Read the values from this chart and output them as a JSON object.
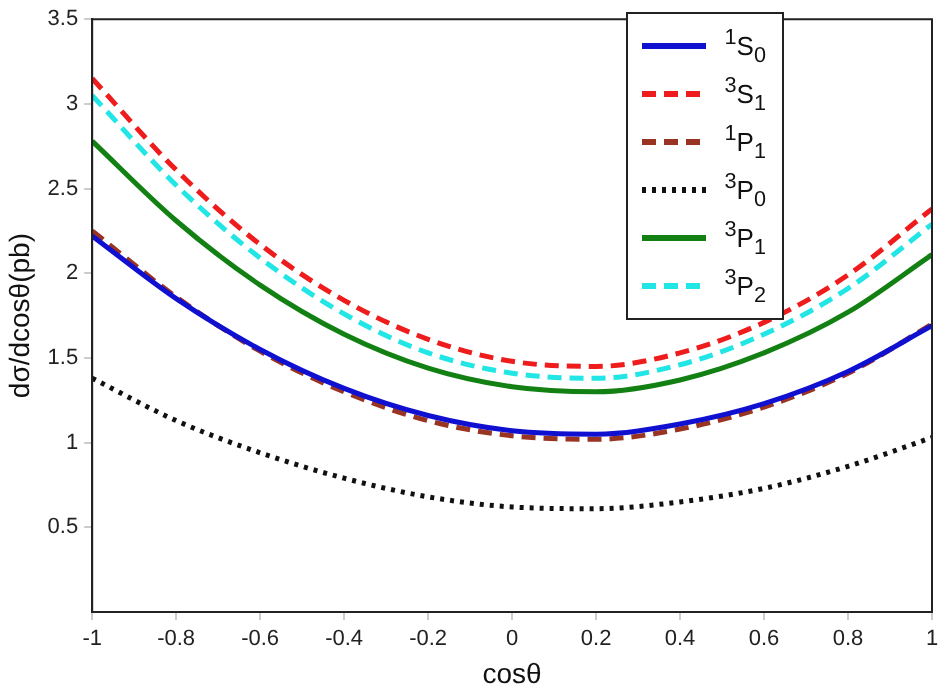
{
  "chart_data": {
    "type": "line",
    "xlabel": "cosθ",
    "ylabel": "dσ/dcosθ(pb)",
    "x": [
      -1,
      -0.8,
      -0.6,
      -0.4,
      -0.2,
      0,
      0.2,
      0.4,
      0.6,
      0.8,
      1
    ],
    "xlim": [
      -1,
      1
    ],
    "xticks": [
      -1,
      -0.8,
      -0.6,
      -0.4,
      -0.2,
      0,
      0.2,
      0.4,
      0.6,
      0.8,
      1
    ],
    "ylim": [
      0,
      3.5
    ],
    "yticks": [
      0.5,
      1,
      1.5,
      2,
      2.5,
      3,
      3.5
    ],
    "grid": false,
    "legend": "top right",
    "marker": "none",
    "series": [
      {
        "name": "$^{1}$S$_{0}$",
        "color": "#1010d0",
        "line_style": "solid",
        "values": [
          2.22,
          1.85,
          1.55,
          1.32,
          1.16,
          1.07,
          1.05,
          1.11,
          1.23,
          1.42,
          1.69
        ]
      },
      {
        "name": "$^{3}$S$_{1}$",
        "color": "#ee1c1c",
        "line_style": "dashed",
        "values": [
          3.15,
          2.61,
          2.17,
          1.84,
          1.61,
          1.48,
          1.45,
          1.53,
          1.71,
          1.99,
          2.38
        ]
      },
      {
        "name": "$^{1}$P$_{1}$",
        "color": "#993322",
        "line_style": "dashed",
        "values": [
          2.25,
          1.86,
          1.54,
          1.3,
          1.13,
          1.04,
          1.02,
          1.08,
          1.21,
          1.41,
          1.7
        ]
      },
      {
        "name": "$^{3}$P$_{0}$",
        "color": "#111111",
        "line_style": "dotted",
        "values": [
          1.38,
          1.13,
          0.94,
          0.79,
          0.68,
          0.62,
          0.61,
          0.65,
          0.73,
          0.86,
          1.03
        ]
      },
      {
        "name": "$^{3}$P$_{1}$",
        "color": "#138013",
        "line_style": "solid",
        "values": [
          2.78,
          2.31,
          1.93,
          1.64,
          1.44,
          1.33,
          1.3,
          1.37,
          1.53,
          1.77,
          2.11
        ]
      },
      {
        "name": "$^{3}$P$_{2}$",
        "color": "#22e5e5",
        "line_style": "dashed",
        "values": [
          3.05,
          2.52,
          2.09,
          1.76,
          1.53,
          1.41,
          1.38,
          1.46,
          1.64,
          1.91,
          2.29
        ]
      }
    ]
  }
}
